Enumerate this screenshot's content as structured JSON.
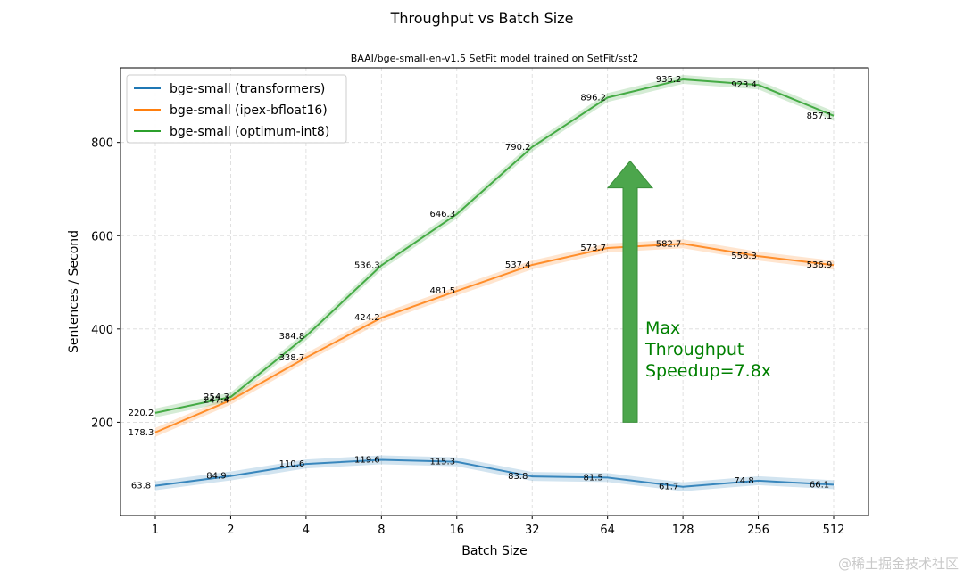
{
  "watermark": "@稀土掘金技术社区",
  "chart_data": {
    "type": "line",
    "title": "Throughput vs Batch Size",
    "subtitle": "BAAI/bge-small-en-v1.5 SetFit model trained on SetFit/sst2",
    "xlabel": "Batch Size",
    "ylabel": "Sentences / Second",
    "x_scale": "log2",
    "categories": [
      "1",
      "2",
      "4",
      "8",
      "16",
      "32",
      "64",
      "128",
      "256",
      "512"
    ],
    "ylim": [
      0,
      960
    ],
    "yticks": [
      200,
      400,
      600,
      800
    ],
    "grid": true,
    "legend_position": "top-left",
    "series": [
      {
        "name": "bge-small (transformers)",
        "color": "#1f77b4",
        "values": [
          63.8,
          84.9,
          110.6,
          119.6,
          115.3,
          83.8,
          81.5,
          61.7,
          74.8,
          66.1
        ]
      },
      {
        "name": "bge-small (ipex-bfloat16)",
        "color": "#ff7f0e",
        "values": [
          178.3,
          247.4,
          338.7,
          424.2,
          481.5,
          537.4,
          573.7,
          582.7,
          556.3,
          536.9
        ]
      },
      {
        "name": "bge-small (optimum-int8)",
        "color": "#2ca02c",
        "values": [
          220.2,
          254.3,
          384.8,
          536.3,
          646.3,
          790.2,
          896.2,
          935.2,
          923.4,
          857.1
        ]
      }
    ],
    "annotation": {
      "text_lines": [
        "Max",
        "Throughput",
        "Speedup=7.8x"
      ],
      "color": "#008000",
      "arrow_color": "#4ca64c",
      "arrow_x_category_pos": 6.3,
      "arrow_from_y": 200,
      "arrow_to_y": 760
    }
  }
}
